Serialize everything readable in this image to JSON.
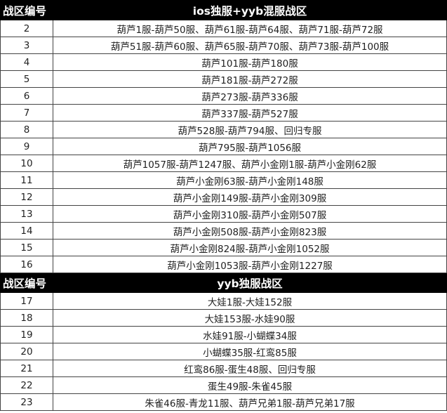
{
  "sections": [
    {
      "header": {
        "col1": "战区编号",
        "col2": "ios独服+yyb混服战区"
      },
      "rows": [
        {
          "id": "2",
          "servers": "葫芦1服-葫芦50服、葫芦61服-葫芦64服、葫芦71服-葫芦72服"
        },
        {
          "id": "3",
          "servers": "葫芦51服-葫芦60服、葫芦65服-葫芦70服、葫芦73服-葫芦100服"
        },
        {
          "id": "4",
          "servers": "葫芦101服-葫芦180服"
        },
        {
          "id": "5",
          "servers": "葫芦181服-葫芦272服"
        },
        {
          "id": "6",
          "servers": "葫芦273服-葫芦336服"
        },
        {
          "id": "7",
          "servers": "葫芦337服-葫芦527服"
        },
        {
          "id": "8",
          "servers": "葫芦528服-葫芦794服、回归专服"
        },
        {
          "id": "9",
          "servers": "葫芦795服-葫芦1056服"
        },
        {
          "id": "10",
          "servers": "葫芦1057服-葫芦1247服、葫芦小金刚1服-葫芦小金刚62服"
        },
        {
          "id": "11",
          "servers": "葫芦小金刚63服-葫芦小金刚148服"
        },
        {
          "id": "12",
          "servers": "葫芦小金刚149服-葫芦小金刚309服"
        },
        {
          "id": "13",
          "servers": "葫芦小金刚310服-葫芦小金刚507服"
        },
        {
          "id": "14",
          "servers": "葫芦小金刚508服-葫芦小金刚823服"
        },
        {
          "id": "15",
          "servers": "葫芦小金刚824服-葫芦小金刚1052服"
        },
        {
          "id": "16",
          "servers": "葫芦小金刚1053服-葫芦小金刚1227服"
        }
      ]
    },
    {
      "header": {
        "col1": "战区编号",
        "col2": "yyb独服战区"
      },
      "rows": [
        {
          "id": "17",
          "servers": "大娃1服-大娃152服"
        },
        {
          "id": "18",
          "servers": "大娃153服-水娃90服"
        },
        {
          "id": "19",
          "servers": "水娃91服-小蝴蝶34服"
        },
        {
          "id": "20",
          "servers": "小蝴蝶35服-红鸾85服"
        },
        {
          "id": "21",
          "servers": "红鸾86服-蛋生48服、回归专服"
        },
        {
          "id": "22",
          "servers": "蛋生49服-朱雀45服"
        },
        {
          "id": "23",
          "servers": "朱雀46服-青龙11服、葫芦兄弟1服-葫芦兄弟17服"
        }
      ]
    }
  ]
}
